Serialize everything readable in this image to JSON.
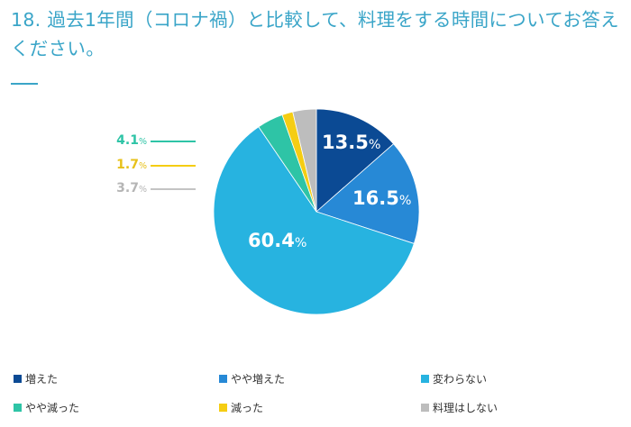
{
  "title": "18. 過去1年間（コロナ禍）と比較して、料理をする時間についてお答えください。",
  "chart_data": {
    "type": "pie",
    "title": "18. 過去1年間（コロナ禍）と比較して、料理をする時間についてお答えください。",
    "unit": "%",
    "start": "top",
    "direction": "clockwise",
    "slices": [
      {
        "name": "増えた",
        "value": 13.5,
        "label": "13.5",
        "color": "#0b4a94"
      },
      {
        "name": "やや増えた",
        "value": 16.5,
        "label": "16.5",
        "color": "#2789d6"
      },
      {
        "name": "変わらない",
        "value": 60.4,
        "label": "60.4",
        "color": "#27b3e0"
      },
      {
        "name": "やや減った",
        "value": 4.1,
        "label": "4.1",
        "color": "#2ec4a6"
      },
      {
        "name": "減った",
        "value": 1.7,
        "label": "1.7",
        "color": "#f5cd13"
      },
      {
        "name": "料理はしない",
        "value": 3.7,
        "label": "3.7",
        "color": "#bdbdbd"
      }
    ],
    "legend_position": "bottom"
  }
}
